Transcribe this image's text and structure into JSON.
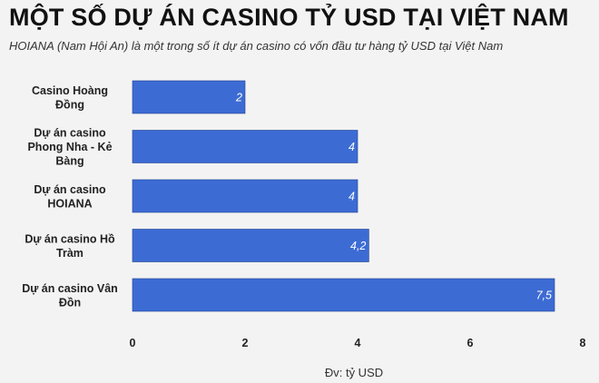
{
  "chart_data": {
    "type": "bar",
    "orientation": "horizontal",
    "title": "MỘT SỐ DỰ ÁN CASINO TỶ USD TẠI VIỆT NAM",
    "subtitle": "HOIANA (Nam Hội An) là một trong số ít dự án casino có vốn đầu tư hàng tỷ USD tại Việt Nam",
    "categories": [
      [
        "Casino Hoàng",
        "Đồng"
      ],
      [
        "Dự án casino",
        "Phong Nha - Kẻ",
        "Bàng"
      ],
      [
        "Dự án casino",
        "HOIANA"
      ],
      [
        "Dự án casino Hồ",
        "Tràm"
      ],
      [
        "Dự án casino Vân",
        "Đồn"
      ]
    ],
    "values": [
      2,
      4,
      4,
      4.2,
      7.5
    ],
    "value_labels": [
      "2",
      "4",
      "4",
      "4,2",
      "7,5"
    ],
    "x_ticks": [
      "0",
      "2",
      "4",
      "6",
      "8"
    ],
    "xlim": [
      0,
      8
    ],
    "xlabel": "Đv: tỷ USD",
    "ylabel": "",
    "grid": false,
    "bar_color": "#3c6bd4",
    "background": "#f3f3f3"
  }
}
